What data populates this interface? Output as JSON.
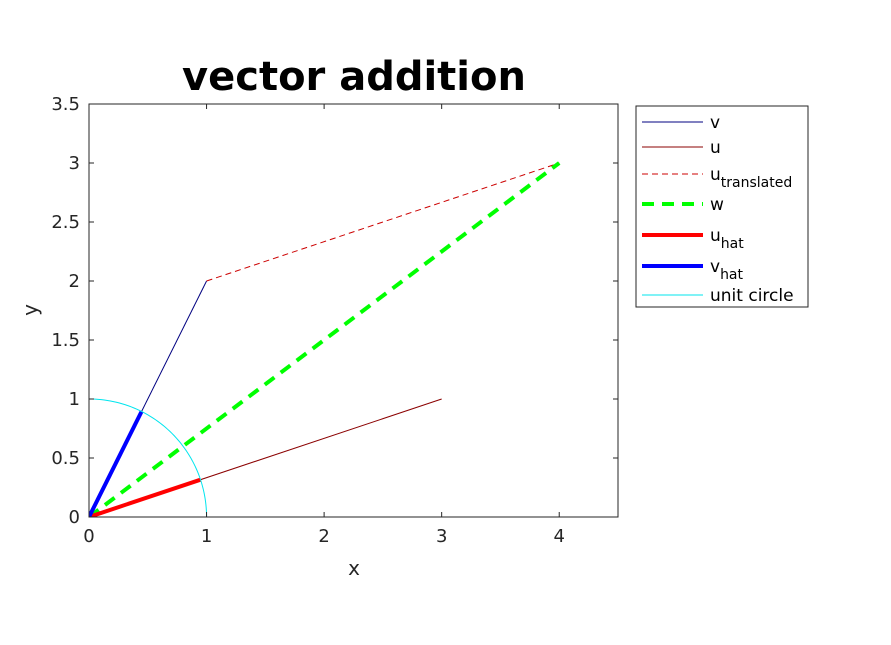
{
  "chart_data": {
    "type": "line",
    "title": "vector addition",
    "xlabel": "x",
    "ylabel": "y",
    "xlim": [
      0,
      4.5
    ],
    "ylim": [
      0,
      3.5
    ],
    "xticks": [
      0,
      1,
      2,
      3,
      4
    ],
    "yticks": [
      0,
      0.5,
      1,
      1.5,
      2,
      2.5,
      3,
      3.5
    ],
    "xtick_labels": [
      "0",
      "1",
      "2",
      "3",
      "4"
    ],
    "ytick_labels": [
      "0",
      "0.5",
      "1",
      "1.5",
      "2",
      "2.5",
      "3",
      "3.5"
    ],
    "grid": false,
    "legend_position": "outside-top-right",
    "series": [
      {
        "key": "v",
        "label": "v",
        "sub": "",
        "color": "#000080",
        "width": 1,
        "dash": "solid",
        "x": [
          0,
          1
        ],
        "y": [
          0,
          2
        ]
      },
      {
        "key": "u",
        "label": "u",
        "sub": "",
        "color": "#8b0000",
        "width": 1,
        "dash": "solid",
        "x": [
          0,
          3
        ],
        "y": [
          0,
          1
        ]
      },
      {
        "key": "u_translated",
        "label": "u",
        "sub": "translated",
        "color": "#cc0000",
        "width": 1,
        "dash": "dashed",
        "x": [
          1,
          4
        ],
        "y": [
          2,
          3
        ]
      },
      {
        "key": "w",
        "label": "w",
        "sub": "",
        "color": "#00ff00",
        "width": 4,
        "dash": "dashed",
        "x": [
          0,
          4
        ],
        "y": [
          0,
          3
        ]
      },
      {
        "key": "u_hat",
        "label": "u",
        "sub": "hat",
        "color": "#ff0000",
        "width": 4,
        "dash": "solid",
        "x": [
          0,
          0.9487
        ],
        "y": [
          0,
          0.3162
        ]
      },
      {
        "key": "v_hat",
        "label": "v",
        "sub": "hat",
        "color": "#0000ff",
        "width": 4,
        "dash": "solid",
        "x": [
          0,
          0.4472
        ],
        "y": [
          0,
          0.8944
        ]
      },
      {
        "key": "unit_circle",
        "label": "unit circle",
        "sub": "",
        "color": "#00e5ee",
        "width": 1,
        "dash": "solid",
        "arc": {
          "cx": 0,
          "cy": 0,
          "r": 1,
          "theta_start_deg": 0,
          "theta_end_deg": 90
        }
      }
    ]
  }
}
